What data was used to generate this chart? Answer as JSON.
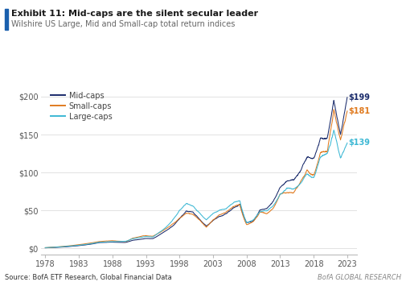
{
  "title_bold": "Exhibit 11: Mid-caps are the silent secular leader",
  "subtitle": "Wilshire US Large, Mid and Small-cap total return indices",
  "source": "Source: BofA ETF Research, Global Financial Data",
  "watermark": "BofA GLOBAL RESEARCH",
  "x_ticks": [
    1978,
    1983,
    1988,
    1993,
    1998,
    2003,
    2008,
    2013,
    2018,
    2023
  ],
  "y_ticks": [
    0,
    50,
    100,
    150,
    200
  ],
  "y_tick_labels": [
    "$0",
    "$50",
    "$100",
    "$150",
    "$200"
  ],
  "ylim": [
    -8,
    218
  ],
  "xlim": [
    1977.3,
    2024.5
  ],
  "end_values": {
    "mid": 199,
    "small": 181,
    "large": 139
  },
  "end_labels": {
    "mid": "$199",
    "small": "$181",
    "large": "$139"
  },
  "colors": {
    "mid": "#1a2b6b",
    "small": "#e07b20",
    "large": "#3db8d4"
  },
  "legend": [
    "Mid-caps",
    "Small-caps",
    "Large-caps"
  ],
  "accent_bar_color": "#1a5fad",
  "grid_color": "#dddddd",
  "background_color": "#ffffff"
}
